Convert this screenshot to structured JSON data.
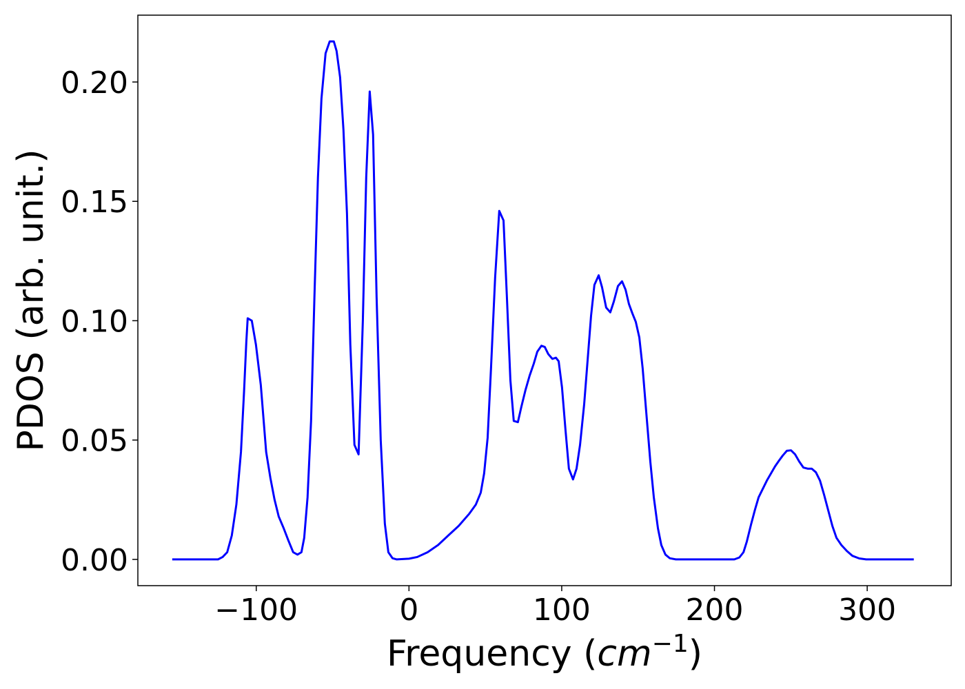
{
  "chart_data": {
    "type": "line",
    "xlabel": {
      "prefix": "Frequency (",
      "unit": "cm",
      "exponent": "−1",
      "suffix": ")"
    },
    "ylabel": "PDOS (arb. unit.)",
    "xlim": [
      -177.5,
      355
    ],
    "ylim": [
      -0.011,
      0.228
    ],
    "xticks": [
      {
        "value": -100,
        "label": "−100"
      },
      0,
      100,
      200,
      300
    ],
    "yticks": [
      {
        "value": 0,
        "label": "0.00"
      },
      {
        "value": 0.05,
        "label": "0.05"
      },
      {
        "value": 0.1,
        "label": "0.10"
      },
      {
        "value": 0.15,
        "label": "0.15"
      },
      {
        "value": 0.2,
        "label": "0.20"
      }
    ],
    "x": [
      -155,
      -125,
      -122,
      -119,
      -116,
      -113,
      -110,
      -108,
      -106.5,
      -105.6,
      -102.9,
      -100.2,
      -97,
      -93.5,
      -90.7,
      -88,
      -85.3,
      -82,
      -79,
      -75.8,
      -73,
      -70.4,
      -68.6,
      -66.4,
      -64.1,
      -61.9,
      -59.6,
      -57.3,
      -54.6,
      -51.9,
      -49.2,
      -47.4,
      -45.1,
      -42.9,
      -40.6,
      -38.4,
      -35.7,
      -33,
      -30.2,
      -28,
      -25.7,
      -23.5,
      -21.2,
      -18.5,
      -15.8,
      -13.5,
      -10.8,
      -8,
      0,
      5.4,
      12.2,
      19,
      25.7,
      32.5,
      39.3,
      43.8,
      47,
      49.2,
      51.5,
      53.7,
      56.4,
      59.1,
      61.9,
      64.1,
      66.4,
      68.6,
      71.3,
      73.6,
      76.3,
      79,
      81.7,
      84,
      86.7,
      88.9,
      91.2,
      93.9,
      96.2,
      98,
      100.2,
      102.5,
      104.7,
      107.4,
      109.7,
      112,
      114.7,
      116.9,
      119.2,
      121.4,
      124.2,
      126.4,
      129.1,
      131.8,
      134.1,
      136.8,
      139.5,
      141.8,
      144,
      146.3,
      148.5,
      150.8,
      153,
      155.3,
      158,
      160.3,
      163,
      165.2,
      167.9,
      170.7,
      174.7,
      213,
      216.3,
      219,
      221.2,
      223.9,
      226.6,
      228.9,
      231.6,
      234.3,
      237,
      239.7,
      242.4,
      244.7,
      247.4,
      250.1,
      252.8,
      255.5,
      258.2,
      261,
      263.7,
      266.4,
      269.1,
      271.8,
      274.5,
      277.2,
      279.9,
      283.1,
      286.7,
      290.3,
      294.8,
      299.3,
      330.5
    ],
    "series": [
      {
        "color": "#0000ff",
        "values": [
          0,
          0,
          0.001,
          0.003,
          0.01,
          0.023,
          0.045,
          0.07,
          0.091,
          0.101,
          0.1,
          0.09,
          0.073,
          0.045,
          0.034,
          0.025,
          0.018,
          0.013,
          0.008,
          0.003,
          0.002,
          0.003,
          0.009,
          0.026,
          0.058,
          0.11,
          0.16,
          0.193,
          0.212,
          0.217,
          0.217,
          0.213,
          0.202,
          0.18,
          0.145,
          0.09,
          0.048,
          0.044,
          0.1,
          0.16,
          0.196,
          0.178,
          0.11,
          0.05,
          0.015,
          0.003,
          0.0005,
          0,
          0.0003,
          0.001,
          0.003,
          0.006,
          0.01,
          0.014,
          0.019,
          0.023,
          0.028,
          0.036,
          0.051,
          0.08,
          0.118,
          0.146,
          0.142,
          0.11,
          0.075,
          0.058,
          0.0575,
          0.064,
          0.071,
          0.077,
          0.082,
          0.087,
          0.0895,
          0.089,
          0.086,
          0.084,
          0.0845,
          0.083,
          0.072,
          0.054,
          0.038,
          0.0335,
          0.038,
          0.048,
          0.065,
          0.083,
          0.102,
          0.115,
          0.119,
          0.114,
          0.1055,
          0.1035,
          0.108,
          0.1145,
          0.1165,
          0.113,
          0.107,
          0.103,
          0.0995,
          0.093,
          0.08,
          0.062,
          0.041,
          0.026,
          0.013,
          0.006,
          0.002,
          0.0005,
          0,
          0,
          0.0008,
          0.003,
          0.0075,
          0.0145,
          0.021,
          0.026,
          0.0295,
          0.033,
          0.036,
          0.039,
          0.0415,
          0.0435,
          0.0455,
          0.0457,
          0.044,
          0.041,
          0.0385,
          0.038,
          0.038,
          0.0365,
          0.033,
          0.027,
          0.0205,
          0.014,
          0.009,
          0.006,
          0.0035,
          0.0015,
          0.0004,
          0,
          0
        ]
      }
    ]
  }
}
